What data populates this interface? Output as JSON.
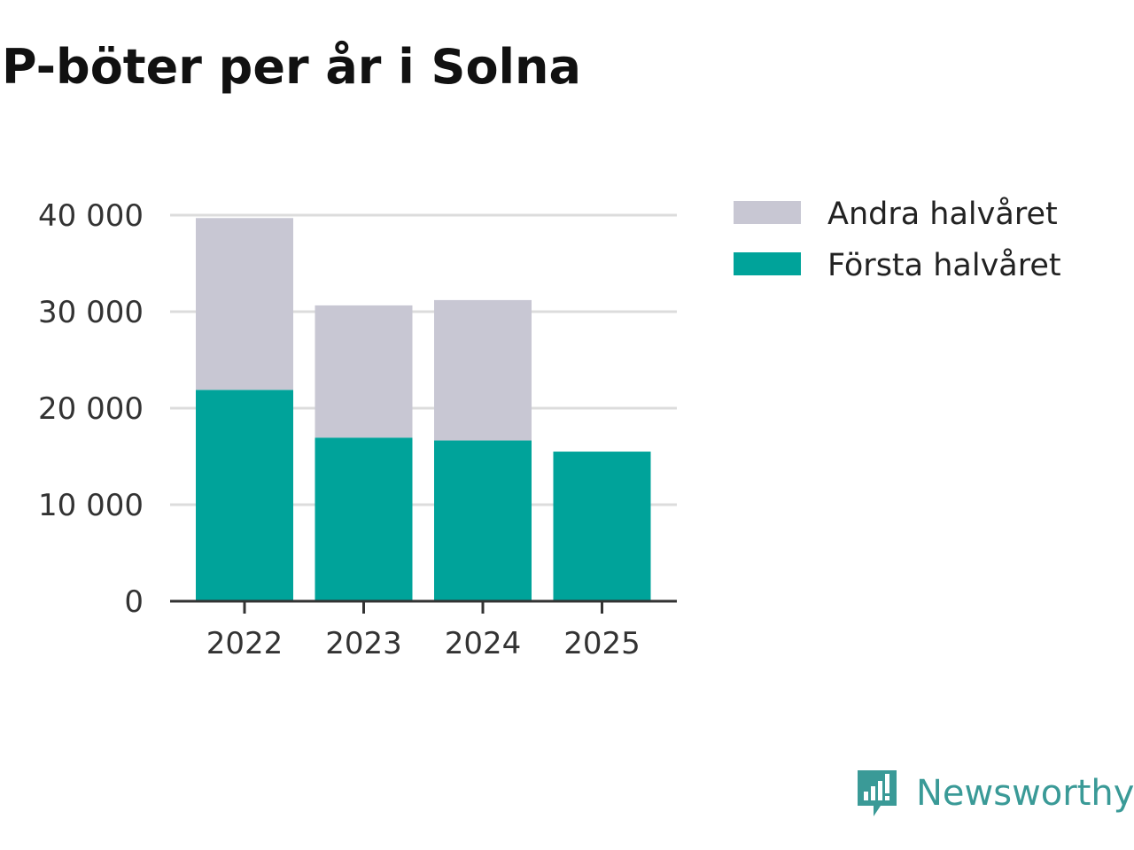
{
  "title": "P-böter per år i Solna",
  "brand": {
    "name": "Newsworthy",
    "icon": "newsworthy-logo-icon",
    "color": "#3a9a97"
  },
  "colors": {
    "first_half": "#00a39a",
    "second_half": "#c8c7d3",
    "grid": "#dcdcdc",
    "axis": "#333333"
  },
  "chart_data": {
    "type": "bar",
    "stacked": true,
    "title": "P-böter per år i Solna",
    "xlabel": "",
    "ylabel": "",
    "categories": [
      "2022",
      "2023",
      "2024",
      "2025"
    ],
    "series": [
      {
        "name": "Första halvåret",
        "values": [
          21900,
          16950,
          16650,
          15500
        ]
      },
      {
        "name": "Andra halvåret",
        "values": [
          17800,
          13700,
          14550,
          null
        ]
      }
    ],
    "ylim": [
      0,
      40000
    ],
    "yticks": [
      0,
      10000,
      20000,
      30000,
      40000
    ],
    "ytick_labels": [
      "0",
      "10 000",
      "20 000",
      "30 000",
      "40 000"
    ],
    "legend": [
      "Andra halvåret",
      "Första halvåret"
    ],
    "legend_position": "top-right",
    "grid": true
  }
}
